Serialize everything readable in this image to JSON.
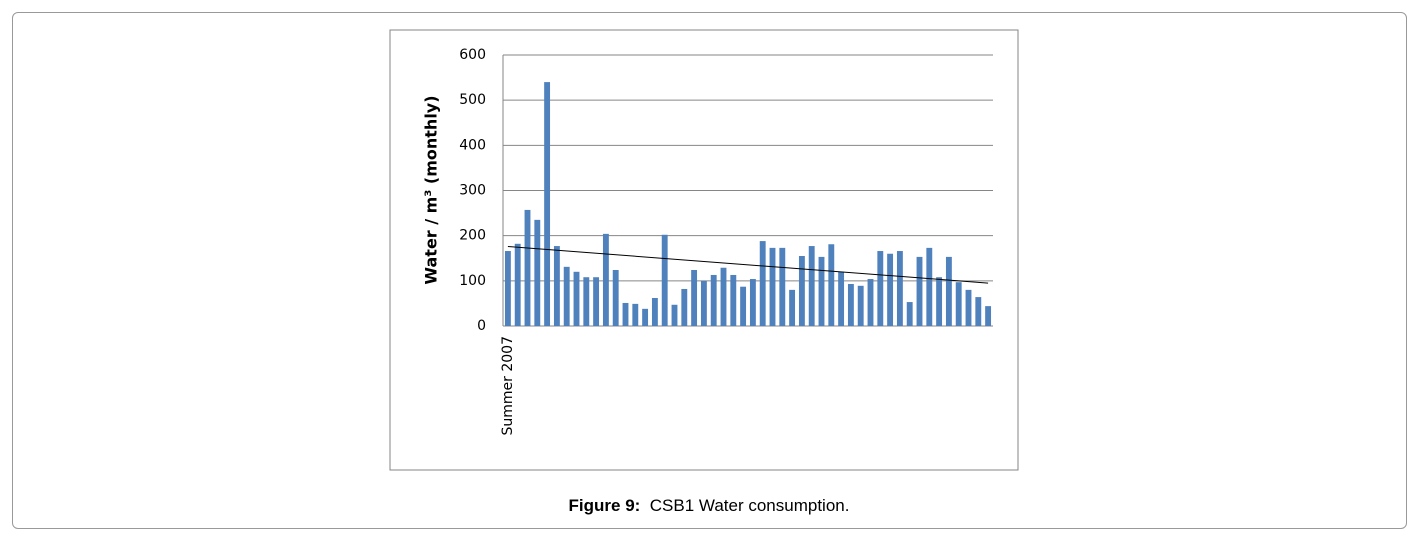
{
  "chart_data": {
    "type": "bar",
    "figure_label": "Figure 9:",
    "caption": "CSB1 Water consumption.",
    "y_label": "Water / m³ (monthly)",
    "categories": [
      "Summer 2007",
      null,
      null,
      null,
      null,
      null,
      null,
      null,
      null,
      null,
      null,
      null,
      null,
      null,
      null,
      null,
      null,
      null,
      null,
      null,
      null,
      null,
      null,
      null,
      null,
      null,
      null,
      null,
      null,
      null,
      null,
      null,
      null,
      null,
      null,
      null,
      null,
      null,
      null,
      null,
      null,
      null,
      null,
      null,
      null,
      null,
      null,
      null,
      null,
      null
    ],
    "values": [
      166,
      182,
      257,
      235,
      540,
      177,
      131,
      120,
      108,
      108,
      204,
      124,
      51,
      49,
      38,
      62,
      202,
      47,
      82,
      124,
      100,
      113,
      129,
      113,
      87,
      104,
      188,
      173,
      173,
      80,
      155,
      177,
      153,
      181,
      120,
      93,
      89,
      104,
      166,
      160,
      166,
      53,
      153,
      173,
      108,
      153,
      97,
      80,
      64,
      44
    ],
    "color": "#4f81bd",
    "trendline": [
      176,
      95
    ],
    "ylim": [
      0,
      600
    ],
    "yticks": [
      0,
      100,
      200,
      300,
      400,
      500,
      600
    ],
    "grid": true
  }
}
